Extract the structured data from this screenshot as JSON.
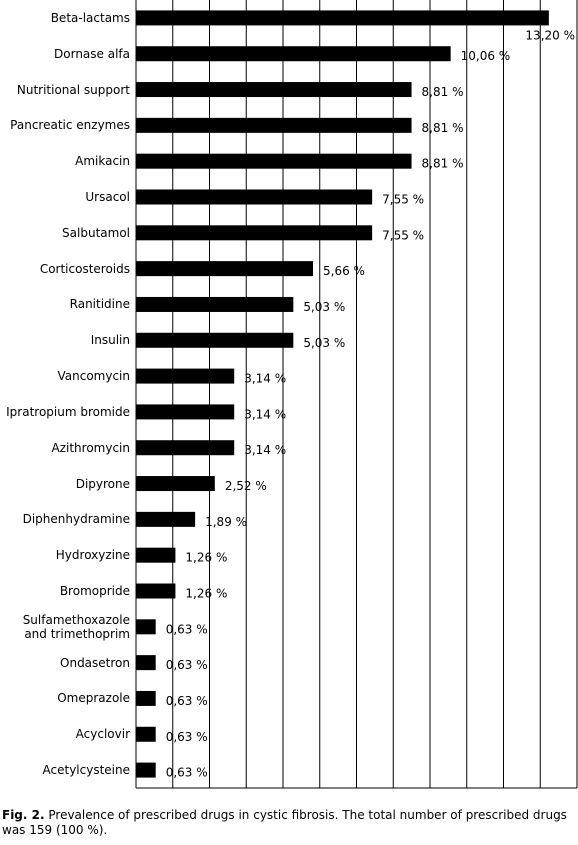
{
  "chart_data": {
    "type": "hbar",
    "categories": [
      "Beta-lactams",
      "Dornase alfa",
      "Nutritional support",
      "Pancreatic enzymes",
      "Amikacin",
      "Ursacol",
      "Salbutamol",
      "Corticosteroids",
      "Ranitidine",
      "Insulin",
      "Vancomycin",
      "Ipratropium bromide",
      "Azithromycin",
      "Dipyrone",
      "Diphenhydramine",
      "Hydroxyzine",
      "Bromopride",
      "Sulfamethoxazole and trimethoprim",
      "Ondasetron",
      "Omeprazole",
      "Acyclovir",
      "Acetylcysteine"
    ],
    "values": [
      13.2,
      10.06,
      8.81,
      8.81,
      8.81,
      7.55,
      7.55,
      5.66,
      5.03,
      5.03,
      3.14,
      3.14,
      3.14,
      2.52,
      1.89,
      1.26,
      1.26,
      0.63,
      0.63,
      0.63,
      0.63,
      0.63
    ],
    "value_labels": [
      "13,20 %",
      "10,06 %",
      "8,81 %",
      "8,81 %",
      "8,81 %",
      "7,55 %",
      "7,55 %",
      "5,66 %",
      "5,03 %",
      "5,03 %",
      "3,14 %",
      "3,14 %",
      "3,14 %",
      "2,52 %",
      "1,89 %",
      "1,26 %",
      "1,26 %",
      "0,63 %",
      "0,63 %",
      "0,63 %",
      "0,63 %",
      "0,63 %"
    ],
    "color": "#000000",
    "xlim": [
      0,
      14.1
    ],
    "grid": true,
    "caption_label": "Fig. 2.",
    "caption": "Prevalence of prescribed drugs in cystic fibrosis. The total number of prescribed drugs was 159 (100 %)."
  }
}
